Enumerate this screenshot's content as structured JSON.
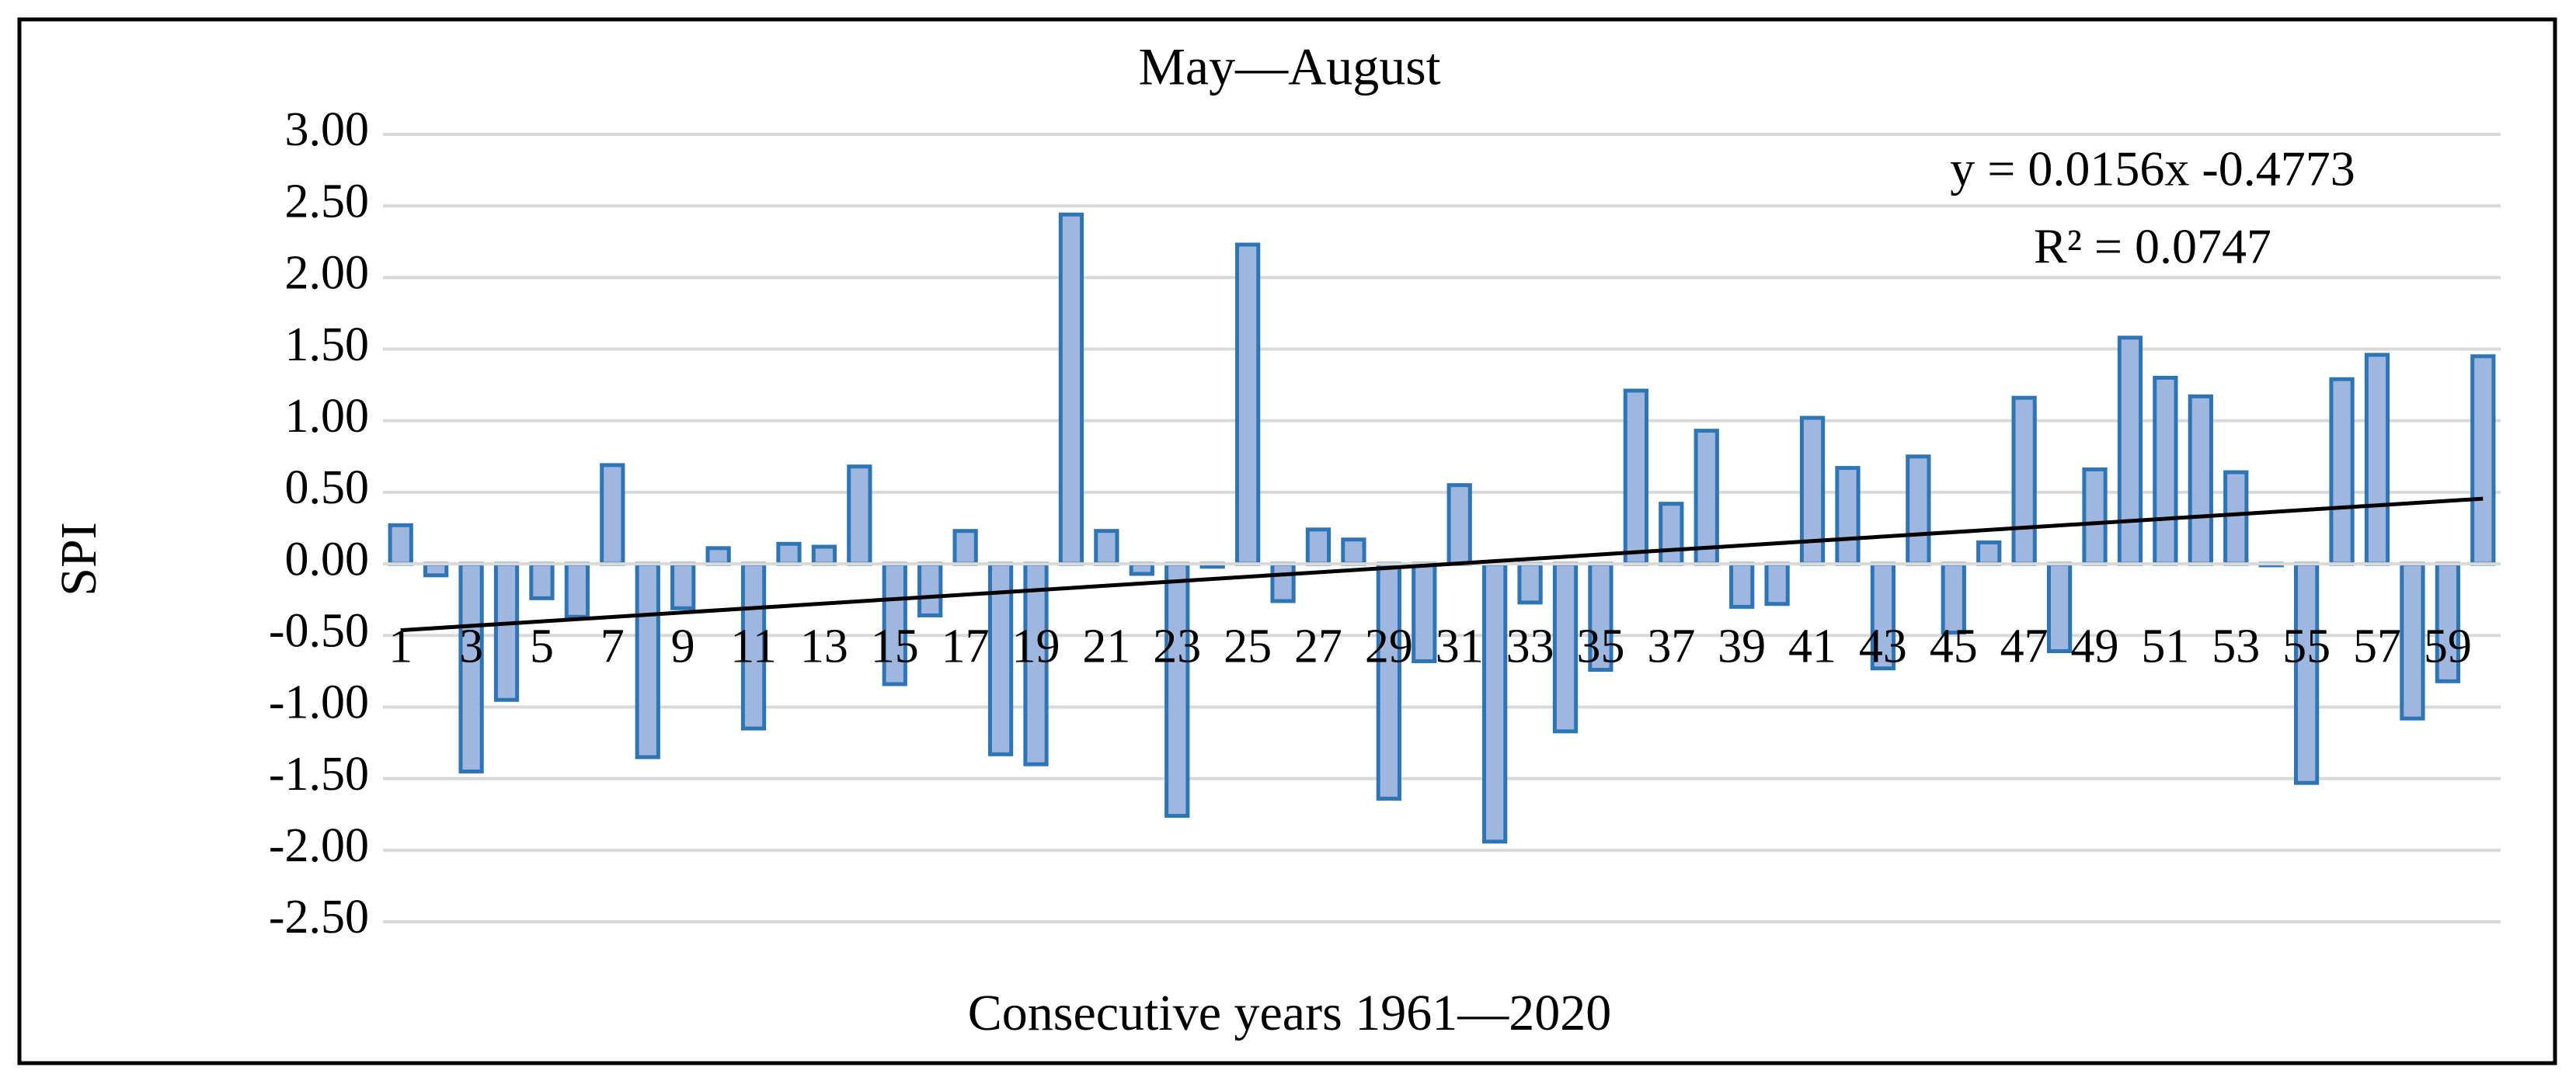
{
  "chart_data": {
    "type": "bar",
    "title": "May—August",
    "x_label": "Consecutive  years 1961—2020",
    "y_label": "SPI",
    "annotations": [
      "y = 0.0156x -0.4773",
      "R² = 0.0747"
    ],
    "categories": [
      "1",
      null,
      "3",
      null,
      "5",
      null,
      "7",
      null,
      "9",
      null,
      "11",
      null,
      "13",
      null,
      "15",
      null,
      "17",
      null,
      "19",
      null,
      "21",
      null,
      "23",
      null,
      "25",
      null,
      "27",
      null,
      "29",
      null,
      "31",
      null,
      "33",
      null,
      "35",
      null,
      "37",
      null,
      "39",
      null,
      "41",
      null,
      "43",
      null,
      "45",
      null,
      "47",
      null,
      "49",
      null,
      "51",
      null,
      "53",
      null,
      "55",
      null,
      "57",
      null,
      "59",
      null
    ],
    "values": [
      0.27,
      -0.08,
      -1.45,
      -0.95,
      -0.24,
      -0.37,
      0.69,
      -1.35,
      -0.31,
      0.11,
      -1.15,
      0.14,
      0.12,
      0.68,
      -0.84,
      -0.36,
      0.23,
      -1.33,
      -1.4,
      2.44,
      0.23,
      -0.07,
      -1.76,
      -0.02,
      2.23,
      -0.26,
      0.24,
      0.17,
      -1.64,
      -0.68,
      0.55,
      -1.94,
      -0.27,
      -1.17,
      -0.74,
      1.21,
      0.42,
      0.93,
      -0.3,
      -0.28,
      1.02,
      0.67,
      -0.73,
      0.75,
      -0.48,
      0.15,
      1.16,
      -0.61,
      0.66,
      1.58,
      1.3,
      1.17,
      0.64,
      -0.01,
      -1.53,
      1.29,
      1.46,
      -1.08,
      -0.82,
      1.45
    ],
    "color": "#9fb6df",
    "edge_color": "#2e75b6",
    "trendline": true,
    "ylim": [
      -2.5,
      3
    ],
    "yticks": [
      {
        "value": -2.5,
        "label": "-2.50"
      },
      {
        "value": -2,
        "label": "-2.00"
      },
      {
        "value": -1.5,
        "label": "-1.50"
      },
      {
        "value": -1,
        "label": "-1.00"
      },
      {
        "value": -0.5,
        "label": "-0.50"
      },
      {
        "value": 0,
        "label": "0.00"
      },
      {
        "value": 0.5,
        "label": "0.50"
      },
      {
        "value": 1,
        "label": "1.00"
      },
      {
        "value": 1.5,
        "label": "1.50"
      },
      {
        "value": 2,
        "label": "2.00"
      },
      {
        "value": 2.5,
        "label": "2.50"
      },
      {
        "value": 3,
        "label": "3.00"
      }
    ],
    "grid": true
  }
}
